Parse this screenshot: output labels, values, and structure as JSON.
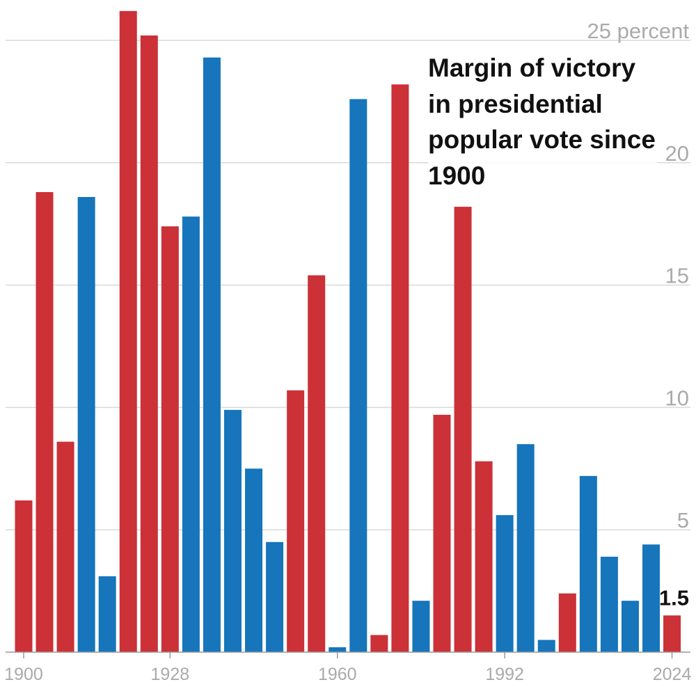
{
  "chart_data": {
    "type": "bar",
    "title": "Margin of victory in presidential popular vote since 1900",
    "ylabel": "percent",
    "ylim": [
      0,
      25
    ],
    "y_ticks": [
      {
        "value": 5,
        "label": "5"
      },
      {
        "value": 10,
        "label": "10"
      },
      {
        "value": 15,
        "label": "15"
      },
      {
        "value": 20,
        "label": "20"
      },
      {
        "value": 25,
        "label": "25 percent"
      }
    ],
    "x_ticks": [
      "1900",
      "1928",
      "1960",
      "1992",
      "2024"
    ],
    "categories": [
      "1900",
      "1904",
      "1908",
      "1912",
      "1916",
      "1920",
      "1924",
      "1928",
      "1932",
      "1936",
      "1940",
      "1944",
      "1948",
      "1952",
      "1956",
      "1960",
      "1964",
      "1968",
      "1972",
      "1976",
      "1980",
      "1984",
      "1988",
      "1992",
      "1996",
      "2000",
      "2004",
      "2008",
      "2012",
      "2016",
      "2020",
      "2024"
    ],
    "values": [
      6.2,
      18.8,
      8.6,
      18.6,
      3.1,
      26.2,
      25.2,
      17.4,
      17.8,
      24.3,
      9.9,
      7.5,
      4.5,
      10.7,
      15.4,
      0.2,
      22.6,
      0.7,
      23.2,
      2.1,
      9.7,
      18.2,
      7.8,
      5.6,
      8.5,
      0.5,
      2.4,
      7.2,
      3.9,
      2.1,
      4.4,
      1.5
    ],
    "party": [
      "R",
      "R",
      "R",
      "D",
      "D",
      "R",
      "R",
      "R",
      "D",
      "D",
      "D",
      "D",
      "D",
      "R",
      "R",
      "D",
      "D",
      "R",
      "R",
      "D",
      "R",
      "R",
      "R",
      "D",
      "D",
      "D",
      "R",
      "D",
      "D",
      "D",
      "D",
      "R"
    ],
    "colors": {
      "R": "#cb3137",
      "D": "#1675bb"
    },
    "annotation": {
      "category": "2024",
      "label": "1.5"
    }
  }
}
